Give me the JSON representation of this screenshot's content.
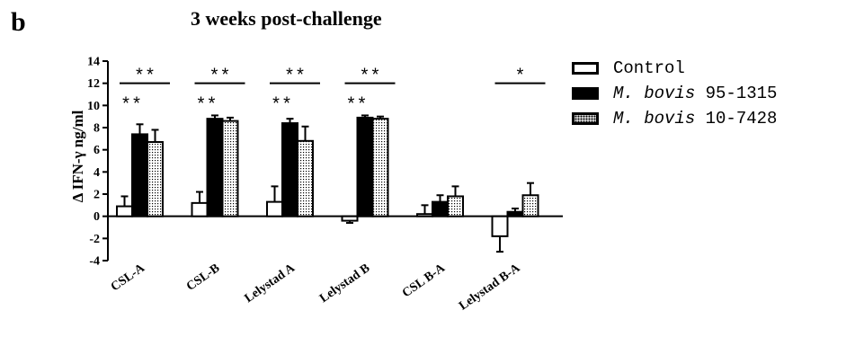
{
  "panel_letter": "b",
  "chart_data": {
    "type": "bar",
    "title": "3 weeks post-challenge",
    "xlabel": "",
    "ylabel": "Δ IFN-γ ng/ml",
    "ylim": [
      -4,
      14
    ],
    "yticks": [
      -4,
      -2,
      0,
      2,
      4,
      6,
      8,
      10,
      12,
      14
    ],
    "categories": [
      "CSL-A",
      "CSL-B",
      "Lelystad A",
      "Lelystad B",
      "CSL B-A",
      "Lelystad B-A"
    ],
    "series": [
      {
        "name": "Control",
        "values": [
          0.9,
          1.2,
          1.3,
          -0.4,
          0.2,
          -1.8
        ],
        "errors": [
          0.9,
          1.0,
          1.4,
          0.2,
          0.8,
          1.4
        ],
        "color": "#ffffff"
      },
      {
        "name": "M. bovis 95-1315",
        "values": [
          7.4,
          8.8,
          8.4,
          8.9,
          1.3,
          0.4
        ],
        "errors": [
          0.9,
          0.3,
          0.4,
          0.2,
          0.6,
          0.3
        ],
        "color": "#000000"
      },
      {
        "name": "M. bovis 10-7428",
        "values": [
          6.7,
          8.6,
          6.8,
          8.8,
          1.8,
          1.9
        ],
        "errors": [
          1.1,
          0.3,
          1.3,
          0.2,
          0.9,
          1.1
        ],
        "color": "#dddddd"
      }
    ],
    "annotations": [
      {
        "category": "CSL-A",
        "upper": "**",
        "lower": "**"
      },
      {
        "category": "CSL-B",
        "upper": "**",
        "lower": "**"
      },
      {
        "category": "Lelystad A",
        "upper": "**",
        "lower": "**"
      },
      {
        "category": "Lelystad B",
        "upper": "**",
        "lower": "**"
      },
      {
        "category": "Lelystad B-A",
        "upper": "*",
        "lower": ""
      }
    ],
    "legend_position": "right",
    "grid": false
  },
  "legend": [
    {
      "prefix": "",
      "name": "Control"
    },
    {
      "prefix": "M. bovis",
      "name": "95-1315"
    },
    {
      "prefix": "M. bovis",
      "name": "10-7428"
    }
  ]
}
